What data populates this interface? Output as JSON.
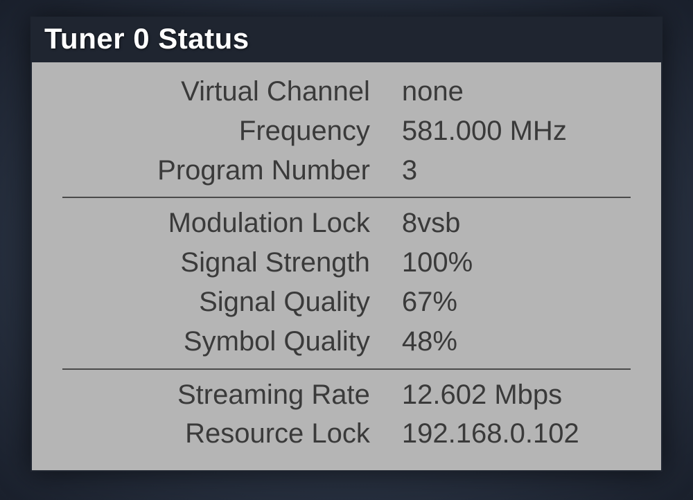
{
  "panel": {
    "title": "Tuner 0 Status",
    "colors": {
      "page_bg_center": "#4a5568",
      "page_bg_edge": "#1a202c",
      "header_bg": "#1f2530",
      "header_text": "#ffffff",
      "body_bg": "#b5b5b5",
      "text": "#3a3a3a",
      "separator": "#4a4a4a"
    },
    "typography": {
      "header_fontsize_pt": 32,
      "body_fontsize_pt": 30,
      "font_family": "Helvetica Neue"
    },
    "sections": [
      {
        "rows": [
          {
            "label": "Virtual Channel",
            "value": "none"
          },
          {
            "label": "Frequency",
            "value": "581.000 MHz"
          },
          {
            "label": "Program Number",
            "value": "3"
          }
        ]
      },
      {
        "rows": [
          {
            "label": "Modulation Lock",
            "value": "8vsb"
          },
          {
            "label": "Signal Strength",
            "value": "100%"
          },
          {
            "label": "Signal Quality",
            "value": "67%"
          },
          {
            "label": "Symbol Quality",
            "value": "48%"
          }
        ]
      },
      {
        "rows": [
          {
            "label": "Streaming Rate",
            "value": "12.602 Mbps"
          },
          {
            "label": "Resource Lock",
            "value": "192.168.0.102"
          }
        ]
      }
    ]
  }
}
